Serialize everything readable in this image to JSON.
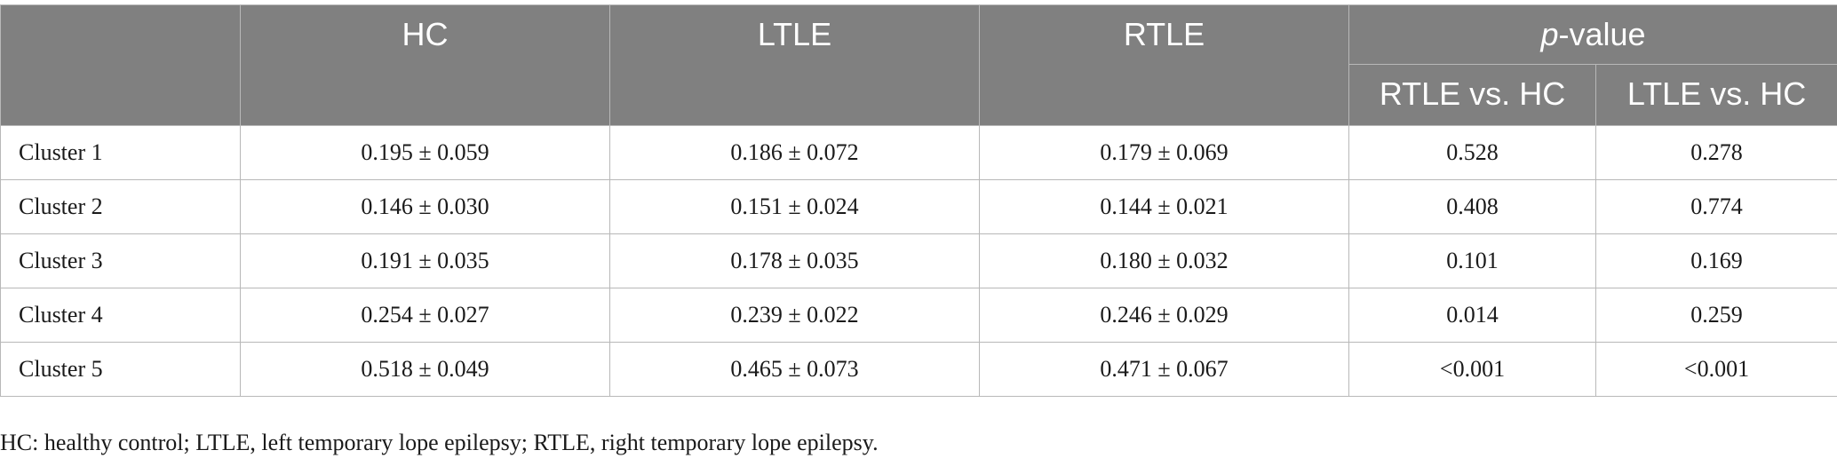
{
  "table": {
    "headers": {
      "row_label": "",
      "hc": "HC",
      "ltle": "LTLE",
      "rtle": "RTLE",
      "pvalue_italic": "p",
      "pvalue_rest": "-value",
      "sub_rtle_vs_hc": "RTLE vs. HC",
      "sub_ltle_vs_hc": "LTLE vs. HC"
    },
    "rows": [
      {
        "label": "Cluster 1",
        "hc": "0.195 ± 0.059",
        "ltle": "0.186 ± 0.072",
        "rtle": "0.179 ± 0.069",
        "p_rtle_hc": "0.528",
        "p_ltle_hc": "0.278"
      },
      {
        "label": "Cluster 2",
        "hc": "0.146 ± 0.030",
        "ltle": "0.151 ± 0.024",
        "rtle": "0.144 ± 0.021",
        "p_rtle_hc": "0.408",
        "p_ltle_hc": "0.774"
      },
      {
        "label": "Cluster 3",
        "hc": "0.191 ± 0.035",
        "ltle": "0.178 ± 0.035",
        "rtle": "0.180 ± 0.032",
        "p_rtle_hc": "0.101",
        "p_ltle_hc": "0.169"
      },
      {
        "label": "Cluster 4",
        "hc": "0.254 ± 0.027",
        "ltle": "0.239 ± 0.022",
        "rtle": "0.246 ± 0.029",
        "p_rtle_hc": "0.014",
        "p_ltle_hc": "0.259"
      },
      {
        "label": "Cluster 5",
        "hc": "0.518 ± 0.049",
        "ltle": "0.465 ± 0.073",
        "rtle": "0.471 ± 0.067",
        "p_rtle_hc": "<0.001",
        "p_ltle_hc": "<0.001"
      }
    ]
  },
  "footnote": "HC: healthy control; LTLE, left temporary lope epilepsy; RTLE, right temporary lope epilepsy."
}
